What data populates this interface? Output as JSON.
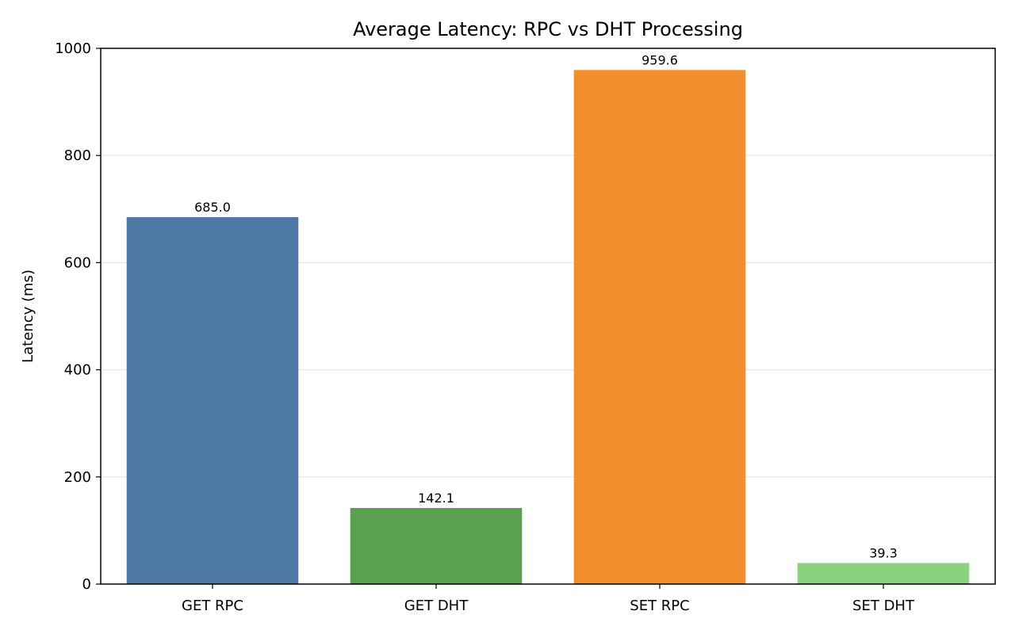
{
  "chart_data": {
    "type": "bar",
    "title": "Average Latency: RPC vs DHT Processing",
    "xlabel": "",
    "ylabel": "Latency (ms)",
    "categories": [
      "GET RPC",
      "GET DHT",
      "SET RPC",
      "SET DHT"
    ],
    "values": [
      685.0,
      142.1,
      959.6,
      39.3
    ],
    "value_labels": [
      "685.0",
      "142.1",
      "959.6",
      "39.3"
    ],
    "colors": [
      "#4e79a7",
      "#59a14f",
      "#f28e2b",
      "#8cd17d"
    ],
    "ylim": [
      0,
      1000
    ],
    "yticks": [
      0,
      200,
      400,
      600,
      800,
      1000
    ],
    "ytick_labels": [
      "0",
      "200",
      "400",
      "600",
      "800",
      "1000"
    ],
    "grid": "y-axis, light",
    "legend": "none"
  }
}
